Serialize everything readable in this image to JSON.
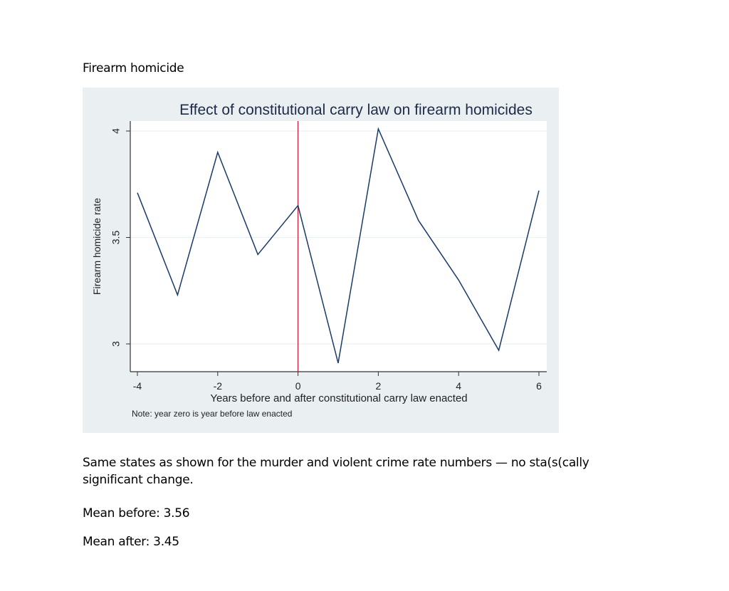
{
  "document": {
    "heading": "Firearm homicide",
    "paragraph": "Same states as shown for the murder and violent crime rate numbers — no sta(s(cally significant change.",
    "mean_before": "Mean before: 3.56",
    "mean_after": "Mean after: 3.45"
  },
  "chart": {
    "title": "Effect of constitutional carry law on firearm homicides",
    "xlabel": "Years before and after constitutional carry law enacted",
    "ylabel": "Firearm homicide rate",
    "note": "Note: year zero is year before law enacted",
    "xticks": [
      "-4",
      "-2",
      "0",
      "2",
      "4",
      "6"
    ],
    "yticks": [
      "3",
      "3.5",
      "4"
    ],
    "colors": {
      "line": "#1a3a6b",
      "refline": "#c0203a",
      "panel": "#eaeff2",
      "grid": "#eaf0f3"
    }
  },
  "chart_data": {
    "type": "line",
    "title": "Effect of constitutional carry law on firearm homicides",
    "xlabel": "Years before and after constitutional carry law enacted",
    "ylabel": "Firearm homicide rate",
    "x": [
      -4,
      -3,
      -2,
      -1,
      0,
      1,
      2,
      3,
      4,
      5,
      6
    ],
    "series": [
      {
        "name": "Firearm homicide rate",
        "values": [
          3.71,
          3.23,
          3.9,
          3.42,
          3.65,
          2.91,
          4.01,
          3.58,
          3.3,
          2.97,
          3.72
        ]
      }
    ],
    "xlim": [
      -4,
      6
    ],
    "ylim": [
      2.88,
      4.05
    ],
    "yticks": [
      3,
      3.5,
      4
    ],
    "xticks": [
      -4,
      -2,
      0,
      2,
      4,
      6
    ],
    "grid": true,
    "reference_line": {
      "x": 0,
      "color": "#c0203a"
    },
    "note": "Note: year zero is year before law enacted",
    "legend": null
  }
}
